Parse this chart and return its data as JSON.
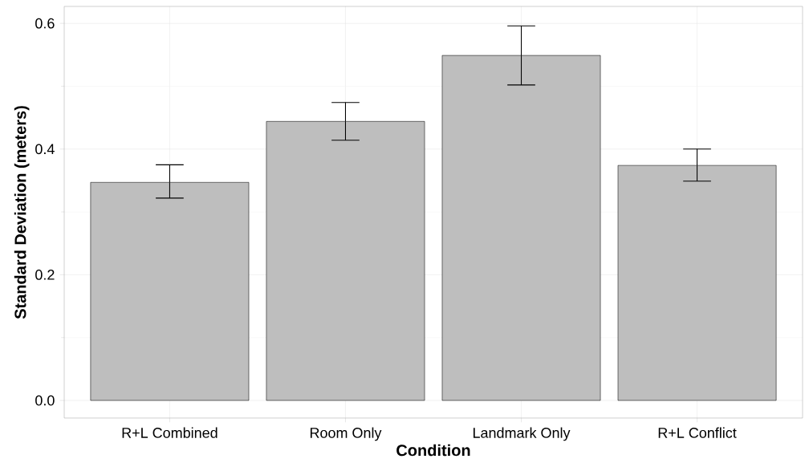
{
  "chart_data": {
    "type": "bar",
    "xlabel": "Condition",
    "ylabel": "Standard Deviation (meters)",
    "categories": [
      "R+L Combined",
      "Room Only",
      "Landmark Only",
      "R+L Conflict"
    ],
    "values": [
      0.347,
      0.444,
      0.549,
      0.374
    ],
    "errors": [
      [
        0.322,
        0.375
      ],
      [
        0.414,
        0.474
      ],
      [
        0.502,
        0.596
      ],
      [
        0.349,
        0.4
      ]
    ],
    "color": "#bebebe",
    "ylim": [
      -0.028,
      0.627
    ],
    "yticks": [
      {
        "value": 0,
        "label": "0.0"
      },
      {
        "value": 0.2,
        "label": "0.2"
      },
      {
        "value": 0.4,
        "label": "0.4"
      },
      {
        "value": 0.6,
        "label": "0.6"
      }
    ],
    "grid": true
  }
}
